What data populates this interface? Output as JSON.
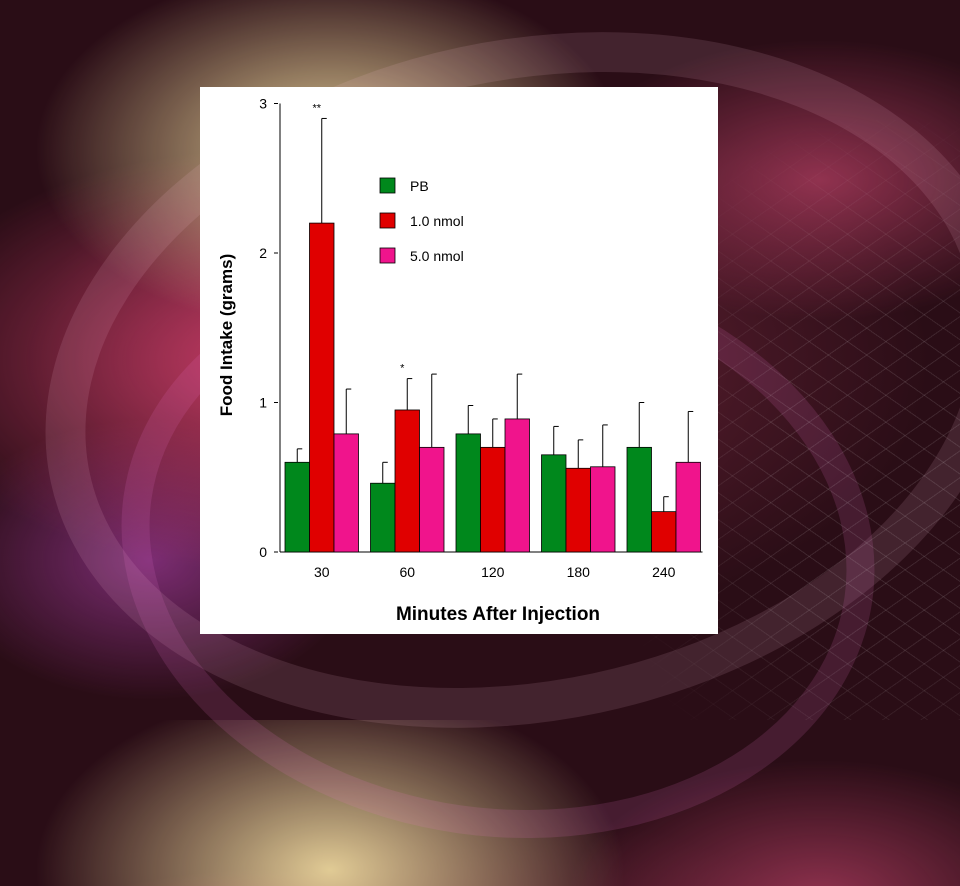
{
  "chart_data": {
    "type": "bar",
    "categories": [
      "30",
      "60",
      "120",
      "180",
      "240"
    ],
    "series": [
      {
        "name": "PB",
        "color": "#00881c",
        "values": [
          0.6,
          0.46,
          0.79,
          0.65,
          0.7
        ],
        "errors": [
          0.09,
          0.14,
          0.19,
          0.19,
          0.3
        ]
      },
      {
        "name": "1.0 nmol",
        "color": "#e00000",
        "values": [
          2.2,
          0.95,
          0.7,
          0.56,
          0.27
        ],
        "errors": [
          0.7,
          0.21,
          0.19,
          0.19,
          0.1
        ]
      },
      {
        "name": "5.0 nmol",
        "color": "#f0148c",
        "values": [
          0.79,
          0.7,
          0.89,
          0.57,
          0.6
        ],
        "errors": [
          0.3,
          0.49,
          0.3,
          0.28,
          0.34
        ]
      }
    ],
    "annotations": [
      {
        "text": "**",
        "category": "30",
        "series": "1.0 nmol"
      },
      {
        "text": "*",
        "category": "60",
        "series": "1.0 nmol"
      }
    ],
    "yticks": [
      "0",
      "1",
      "2",
      "3"
    ],
    "ylim": [
      0,
      3
    ],
    "xlabel": "Minutes After Injection",
    "ylabel": "Food Intake (grams)",
    "legend_position": "top-center",
    "grid": false
  }
}
